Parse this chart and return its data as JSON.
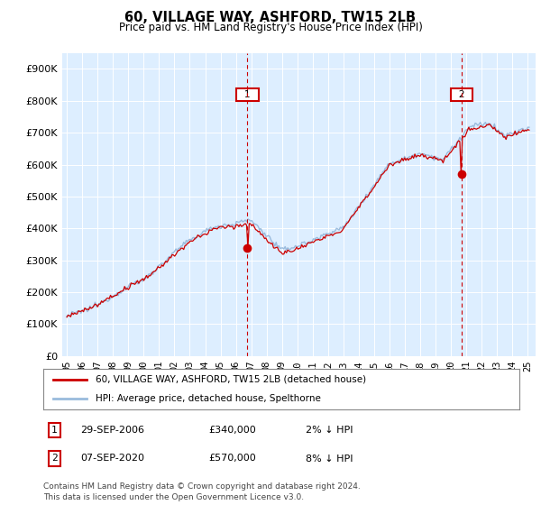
{
  "title": "60, VILLAGE WAY, ASHFORD, TW15 2LB",
  "subtitle": "Price paid vs. HM Land Registry's House Price Index (HPI)",
  "ylabel_ticks": [
    "£0",
    "£100K",
    "£200K",
    "£300K",
    "£400K",
    "£500K",
    "£600K",
    "£700K",
    "£800K",
    "£900K"
  ],
  "ytick_values": [
    0,
    100000,
    200000,
    300000,
    400000,
    500000,
    600000,
    700000,
    800000,
    900000
  ],
  "ylim": [
    0,
    950000
  ],
  "xlim_start": 1994.7,
  "xlim_end": 2025.5,
  "sale1_x": 2006.75,
  "sale1_y": 340000,
  "sale1_label": "1",
  "sale2_x": 2020.69,
  "sale2_y": 570000,
  "sale2_label": "2",
  "line_color_property": "#cc0000",
  "line_color_hpi": "#99bbdd",
  "vline_color": "#cc0000",
  "chart_bg": "#ddeeff",
  "legend_entry1": "60, VILLAGE WAY, ASHFORD, TW15 2LB (detached house)",
  "legend_entry2": "HPI: Average price, detached house, Spelthorne",
  "table_row1": [
    "1",
    "29-SEP-2006",
    "£340,000",
    "2% ↓ HPI"
  ],
  "table_row2": [
    "2",
    "07-SEP-2020",
    "£570,000",
    "8% ↓ HPI"
  ],
  "footnote": "Contains HM Land Registry data © Crown copyright and database right 2024.\nThis data is licensed under the Open Government Licence v3.0.",
  "background_color": "#ffffff",
  "grid_color": "#ffffff"
}
